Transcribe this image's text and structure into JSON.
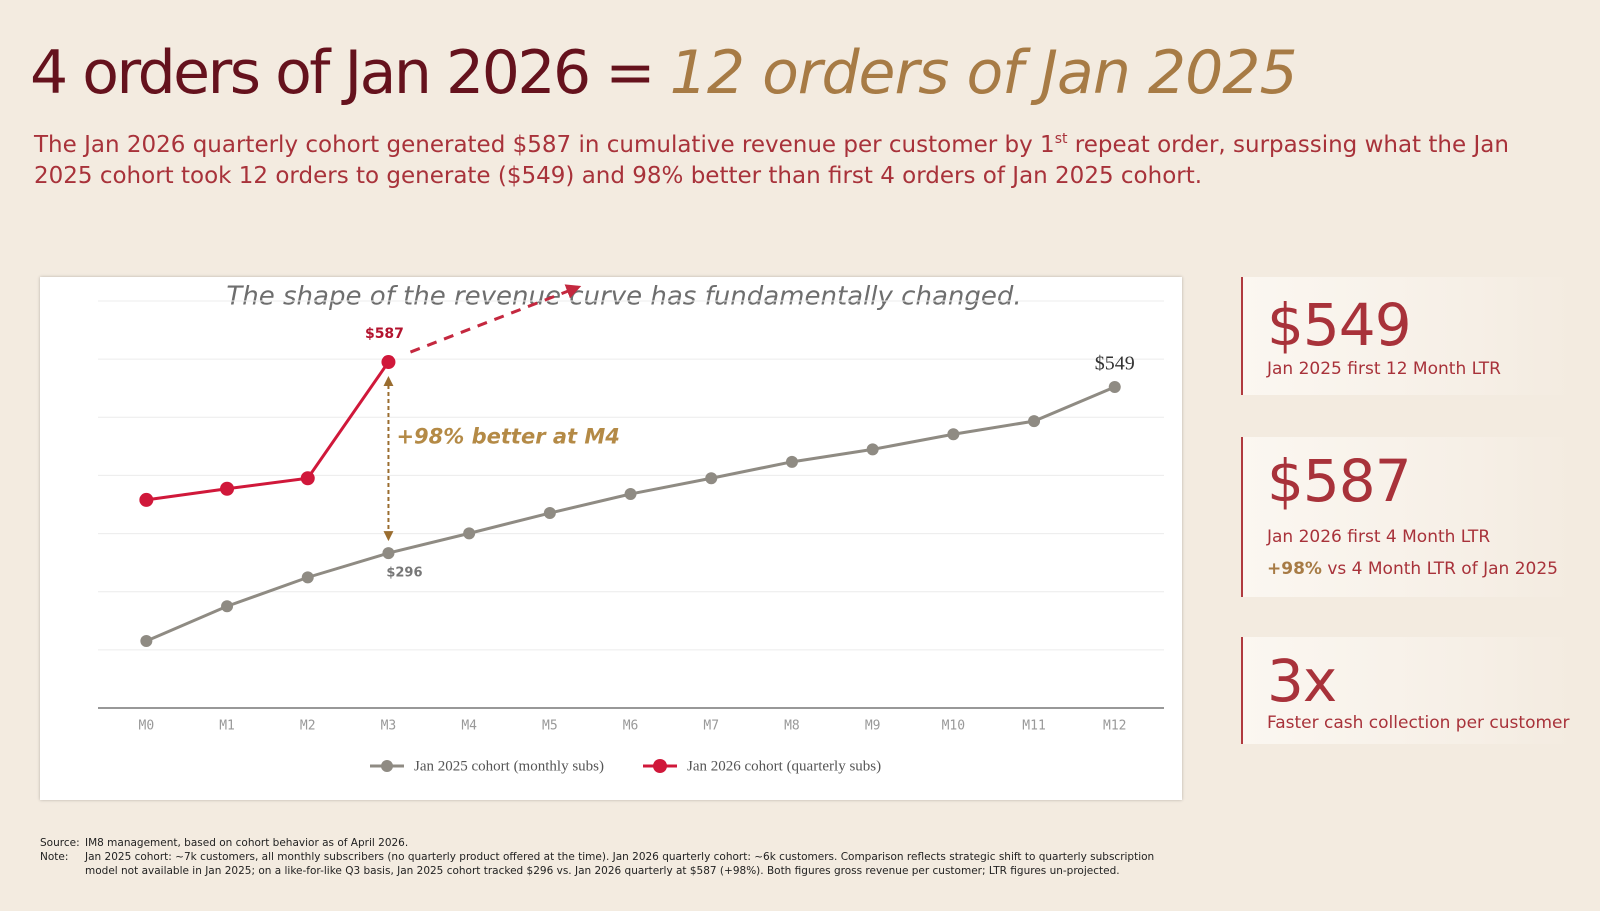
{
  "header": {
    "title": [
      "4 orders of Jan 2026 = ",
      "12 orders of Jan 2025"
    ],
    "subtitle": [
      "The Jan 2026 quarterly cohort generated $587 in cumulative revenue per customer by 1",
      "st",
      " repeat order, surpassing what the Jan 2025 cohort took 12 orders to generate ($549) and 98% better than first 4 orders of Jan 2025 cohort."
    ]
  },
  "chart_data": {
    "type": "line",
    "title": "The shape of the revenue curve has fundamentally changed.",
    "categories": [
      "M0",
      "M1",
      "M2",
      "M3",
      "M4",
      "M5",
      "M6",
      "M7",
      "M8",
      "M9",
      "M10",
      "M11",
      "M12"
    ],
    "series": [
      {
        "name": "Jan 2025 cohort (monthly subs)",
        "color": "#8f8b83",
        "values": [
          162,
          215,
          259,
          296,
          326,
          357,
          386,
          410,
          435,
          454,
          477,
          497,
          549
        ],
        "value_labels": [
          null,
          null,
          null,
          "$296",
          null,
          null,
          null,
          null,
          null,
          null,
          null,
          null,
          "$549"
        ]
      },
      {
        "name": "Jan 2026 cohort (quarterly subs)",
        "color": "#d0183a",
        "values": [
          377,
          394,
          410,
          587,
          null,
          null,
          null,
          null,
          null,
          null,
          null,
          null,
          null
        ],
        "value_labels": [
          null,
          null,
          null,
          "$587",
          null,
          null,
          null,
          null,
          null,
          null,
          null,
          null,
          null
        ]
      }
    ],
    "ylim": [
      60,
      680
    ],
    "grid": true,
    "legend": "bottom",
    "annotation": "+98% better at M4"
  },
  "cards": [
    {
      "value": "$549",
      "lines": [
        "Jan 2025 first 12 Month LTR"
      ]
    },
    {
      "value": "$587",
      "lines": [
        "Jan 2026 first 4 Month LTR"
      ],
      "highlight": "+98%",
      "rest": " vs 4 Month LTR of Jan 2025"
    },
    {
      "value": "3x",
      "lines": [
        "Faster cash collection per customer"
      ]
    }
  ],
  "footer": {
    "source_label": "Source:",
    "source": "IM8 management, based on cohort behavior as of April 2026.",
    "note_label": "Note:",
    "note": "Jan 2025 cohort: ~7k customers, all monthly subscribers (no quarterly product offered at the time). Jan 2026 quarterly cohort: ~6k customers. Comparison reflects strategic shift to quarterly subscription model not available  in Jan 2025; on a like-for-like Q3 basis, Jan 2025 cohort tracked $296 vs. Jan 2026 quarterly at $587 (+98%). Both figures gross revenue per customer; LTR figures un-projected."
  }
}
